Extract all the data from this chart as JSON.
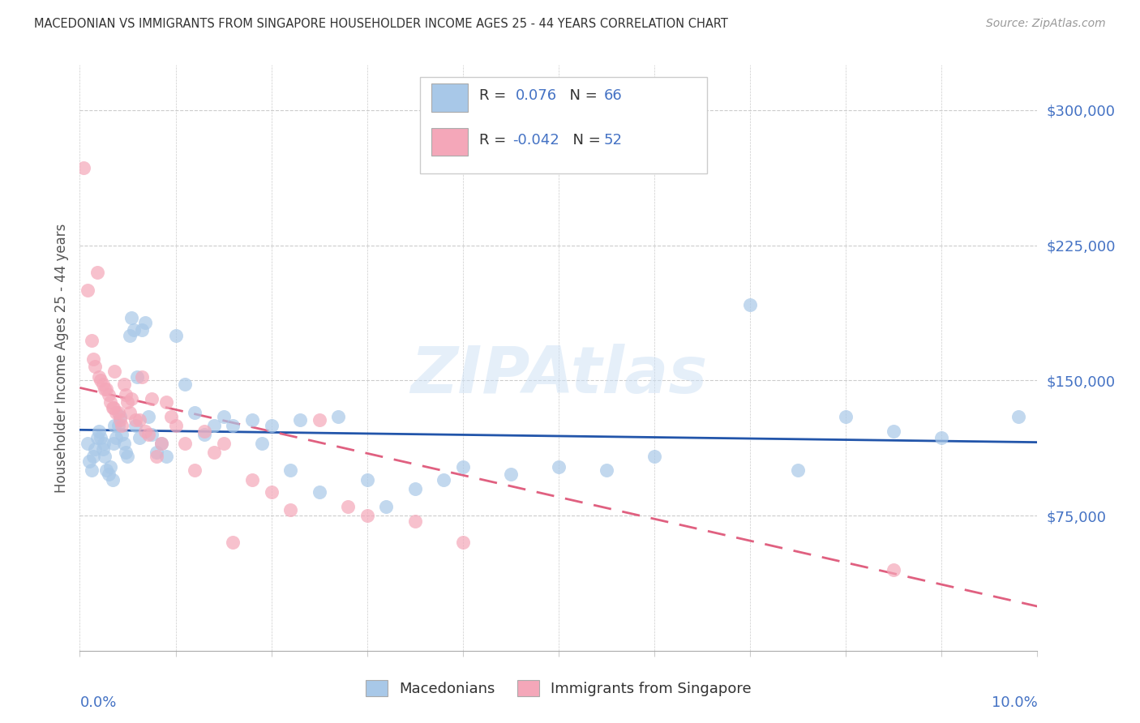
{
  "title": "MACEDONIAN VS IMMIGRANTS FROM SINGAPORE HOUSEHOLDER INCOME AGES 25 - 44 YEARS CORRELATION CHART",
  "source": "Source: ZipAtlas.com",
  "ylabel": "Householder Income Ages 25 - 44 years",
  "xlim": [
    0.0,
    10.0
  ],
  "ylim": [
    0,
    325000
  ],
  "yticks": [
    75000,
    150000,
    225000,
    300000
  ],
  "ytick_labels": [
    "$75,000",
    "$150,000",
    "$225,000",
    "$300,000"
  ],
  "blue_R": "0.076",
  "blue_N": "66",
  "pink_R": "-0.042",
  "pink_N": "52",
  "blue_color": "#a8c8e8",
  "pink_color": "#f4a7b9",
  "blue_line_color": "#2255aa",
  "pink_line_color": "#e06080",
  "text_color": "#4472c4",
  "legend_label_blue": "Macedonians",
  "legend_label_pink": "Immigrants from Singapore",
  "watermark": "ZIPAtlas",
  "blue_scatter_x": [
    0.08,
    0.1,
    0.12,
    0.14,
    0.16,
    0.18,
    0.2,
    0.22,
    0.24,
    0.25,
    0.26,
    0.28,
    0.3,
    0.32,
    0.34,
    0.35,
    0.36,
    0.38,
    0.4,
    0.42,
    0.44,
    0.46,
    0.48,
    0.5,
    0.52,
    0.54,
    0.56,
    0.58,
    0.6,
    0.62,
    0.65,
    0.68,
    0.72,
    0.75,
    0.8,
    0.85,
    0.9,
    1.0,
    1.1,
    1.2,
    1.3,
    1.4,
    1.5,
    1.6,
    1.8,
    1.9,
    2.0,
    2.2,
    2.3,
    2.5,
    2.7,
    3.0,
    3.2,
    3.5,
    3.8,
    4.0,
    4.5,
    5.0,
    5.5,
    6.0,
    7.0,
    7.5,
    8.0,
    8.5,
    9.0,
    9.8
  ],
  "blue_scatter_y": [
    115000,
    105000,
    100000,
    108000,
    112000,
    118000,
    122000,
    118000,
    112000,
    115000,
    108000,
    100000,
    98000,
    102000,
    95000,
    115000,
    125000,
    118000,
    125000,
    130000,
    120000,
    115000,
    110000,
    108000,
    175000,
    185000,
    178000,
    125000,
    152000,
    118000,
    178000,
    182000,
    130000,
    120000,
    110000,
    115000,
    108000,
    175000,
    148000,
    132000,
    120000,
    125000,
    130000,
    125000,
    128000,
    115000,
    125000,
    100000,
    128000,
    88000,
    130000,
    95000,
    80000,
    90000,
    95000,
    102000,
    98000,
    102000,
    100000,
    108000,
    192000,
    100000,
    130000,
    122000,
    118000,
    130000
  ],
  "pink_scatter_x": [
    0.04,
    0.08,
    0.12,
    0.14,
    0.16,
    0.18,
    0.2,
    0.22,
    0.24,
    0.26,
    0.28,
    0.3,
    0.32,
    0.34,
    0.35,
    0.36,
    0.38,
    0.4,
    0.42,
    0.44,
    0.46,
    0.48,
    0.5,
    0.52,
    0.54,
    0.58,
    0.62,
    0.65,
    0.68,
    0.72,
    0.75,
    0.8,
    0.85,
    0.9,
    0.95,
    1.0,
    1.1,
    1.2,
    1.3,
    1.4,
    1.5,
    1.6,
    1.8,
    2.0,
    2.2,
    2.5,
    2.8,
    3.0,
    3.5,
    4.0,
    4.5,
    8.5
  ],
  "pink_scatter_y": [
    268000,
    200000,
    172000,
    162000,
    158000,
    210000,
    152000,
    150000,
    148000,
    145000,
    145000,
    142000,
    138000,
    135000,
    135000,
    155000,
    132000,
    132000,
    128000,
    125000,
    148000,
    142000,
    138000,
    132000,
    140000,
    128000,
    128000,
    152000,
    122000,
    120000,
    140000,
    108000,
    115000,
    138000,
    130000,
    125000,
    115000,
    100000,
    122000,
    110000,
    115000,
    60000,
    95000,
    88000,
    78000,
    128000,
    80000,
    75000,
    72000,
    60000,
    290000,
    45000
  ]
}
